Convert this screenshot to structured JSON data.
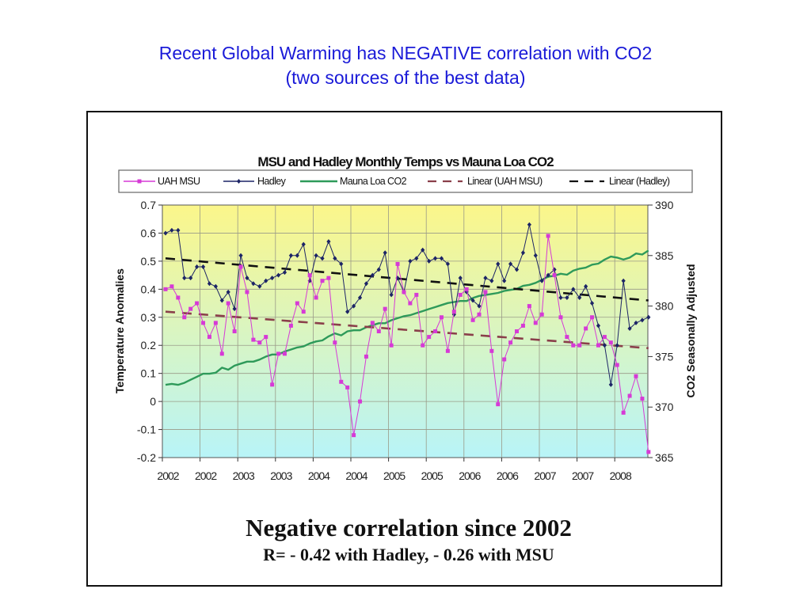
{
  "slide": {
    "title_line1": "Recent Global Warming has NEGATIVE correlation with CO2",
    "title_line2": "(two sources of the best data)",
    "caption_line1": "Negative correlation since 2002",
    "caption_line2": "R= - 0.42 with Hadley, - 0.26 with MSU"
  },
  "chart_data": {
    "type": "line",
    "title": "MSU and Hadley Monthly Temps vs Mauna Loa CO2",
    "xlabel": "",
    "ylabel": "Temperature Anomalies",
    "y2label": "CO2 Seasonally Adjusted",
    "ylim": [
      -0.2,
      0.7
    ],
    "y2lim": [
      365,
      390
    ],
    "yticks": [
      "0.7",
      "0.6",
      "0.5",
      "0.4",
      "0.3",
      "0.2",
      "0.1",
      "0",
      "-0.1",
      "-0.2"
    ],
    "y2ticks": [
      "390",
      "385",
      "380",
      "375",
      "370",
      "365"
    ],
    "xtick_labels": [
      "2002",
      "2002",
      "2003",
      "2003",
      "2004",
      "2004",
      "2005",
      "2005",
      "2006",
      "2006",
      "2007",
      "2007",
      "2008"
    ],
    "x_start": "2002-01",
    "x_step": "1 month",
    "grid": true,
    "legend_position": "top",
    "legend": [
      "UAH MSU",
      "Hadley",
      "Mauna Loa CO2",
      "Linear (UAH MSU)",
      "Linear (Hadley)"
    ],
    "colors": {
      "uah": "#d63ad6",
      "hadley": "#1c2466",
      "co2": "#2e9a5a",
      "linear_uah": "#8a3f4a",
      "linear_hadley": "#111111",
      "bg_top": "#fbf68a",
      "bg_bottom": "#b8f4f8"
    },
    "series": [
      {
        "name": "UAH MSU",
        "axis": "left",
        "values": [
          0.4,
          0.41,
          0.37,
          0.3,
          0.33,
          0.35,
          0.28,
          0.23,
          0.28,
          0.17,
          0.35,
          0.25,
          0.48,
          0.39,
          0.22,
          0.21,
          0.23,
          0.06,
          0.17,
          0.17,
          0.27,
          0.35,
          0.32,
          0.45,
          0.37,
          0.43,
          0.44,
          0.21,
          0.07,
          0.05,
          -0.12,
          0.0,
          0.16,
          0.28,
          0.25,
          0.33,
          0.2,
          0.49,
          0.39,
          0.35,
          0.38,
          0.2,
          0.23,
          0.25,
          0.3,
          0.18,
          0.32,
          0.38,
          0.4,
          0.29,
          0.31,
          0.39,
          0.18,
          -0.01,
          0.15,
          0.21,
          0.25,
          0.27,
          0.34,
          0.28,
          0.31,
          0.59,
          0.45,
          0.3,
          0.23,
          0.2,
          0.2,
          0.26,
          0.3,
          0.2,
          0.23,
          0.21,
          0.13,
          -0.04,
          0.02,
          0.09,
          0.01,
          -0.18
        ]
      },
      {
        "name": "Hadley",
        "axis": "left",
        "values": [
          0.6,
          0.61,
          0.61,
          0.44,
          0.44,
          0.48,
          0.48,
          0.42,
          0.41,
          0.36,
          0.39,
          0.33,
          0.52,
          0.44,
          0.42,
          0.41,
          0.43,
          0.44,
          0.45,
          0.46,
          0.52,
          0.52,
          0.56,
          0.43,
          0.52,
          0.51,
          0.57,
          0.51,
          0.49,
          0.32,
          0.34,
          0.37,
          0.42,
          0.45,
          0.47,
          0.53,
          0.38,
          0.44,
          0.39,
          0.5,
          0.51,
          0.54,
          0.5,
          0.51,
          0.51,
          0.49,
          0.31,
          0.44,
          0.39,
          0.36,
          0.34,
          0.44,
          0.43,
          0.49,
          0.43,
          0.49,
          0.47,
          0.53,
          0.63,
          0.52,
          0.43,
          0.45,
          0.47,
          0.37,
          0.37,
          0.4,
          0.37,
          0.41,
          0.35,
          0.27,
          0.2,
          0.06,
          0.2,
          0.43,
          0.26,
          0.28,
          0.29,
          0.3
        ]
      },
      {
        "name": "Mauna Loa CO2",
        "axis": "right",
        "values": [
          372.2,
          372.3,
          372.2,
          372.4,
          372.7,
          373.0,
          373.3,
          373.3,
          373.4,
          373.9,
          373.7,
          374.1,
          374.3,
          374.5,
          374.5,
          374.7,
          375.0,
          375.2,
          375.2,
          375.5,
          375.7,
          375.9,
          376.0,
          376.3,
          376.5,
          376.6,
          377.0,
          377.3,
          377.1,
          377.5,
          377.6,
          377.6,
          377.9,
          378.1,
          378.3,
          378.3,
          378.6,
          378.8,
          379.0,
          379.1,
          379.3,
          379.5,
          379.7,
          379.9,
          380.1,
          380.3,
          380.4,
          380.5,
          380.5,
          380.8,
          381.0,
          381.1,
          381.2,
          381.3,
          381.5,
          381.6,
          381.7,
          382.0,
          382.1,
          382.3,
          382.6,
          382.9,
          383.0,
          383.2,
          383.1,
          383.5,
          383.7,
          383.8,
          384.1,
          384.2,
          384.6,
          384.9,
          384.8,
          384.6,
          384.8,
          385.2,
          385.1,
          385.5
        ]
      },
      {
        "name": "Linear (UAH MSU)",
        "axis": "left",
        "style": "dashed",
        "values": [
          0.32,
          0.19
        ]
      },
      {
        "name": "Linear (Hadley)",
        "axis": "left",
        "style": "dashed",
        "values": [
          0.51,
          0.36
        ]
      }
    ]
  }
}
